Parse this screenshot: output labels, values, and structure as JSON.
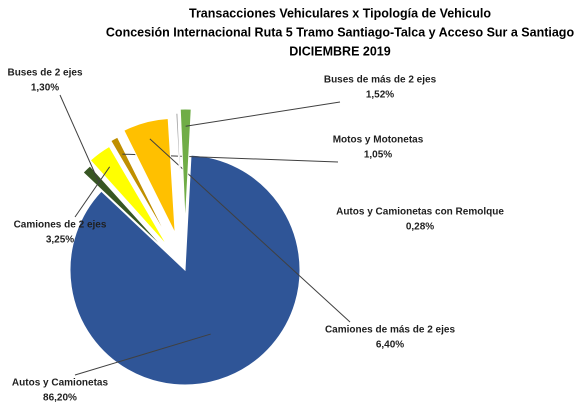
{
  "chart_data": {
    "type": "pie",
    "title_lines": [
      "Transacciones Vehiculares x Tipología de Vehiculo",
      "Concesión Internacional Ruta 5 Tramo Santiago-Talca y Acceso Sur a Santiago",
      "DICIEMBRE 2019"
    ],
    "categories": [
      "Autos y Camionetas",
      "Buses de 2 ejes",
      "Camiones de 2 ejes",
      "Motos y Motonetas",
      "Camiones de más de 2 ejes",
      "Autos y Camionetas con Remolque",
      "Buses de más de 2 ejes"
    ],
    "values": [
      86.2,
      1.3,
      3.25,
      1.05,
      6.4,
      0.28,
      1.52
    ],
    "value_labels": [
      "86,20%",
      "1,30%",
      "3,25%",
      "1,05%",
      "6,40%",
      "0,28%",
      "1,52%"
    ],
    "colors": [
      "#2f5597",
      "#375623",
      "#ffff00",
      "#bf8f00",
      "#ffc000",
      "#a5a5a5",
      "#70ad47"
    ]
  }
}
